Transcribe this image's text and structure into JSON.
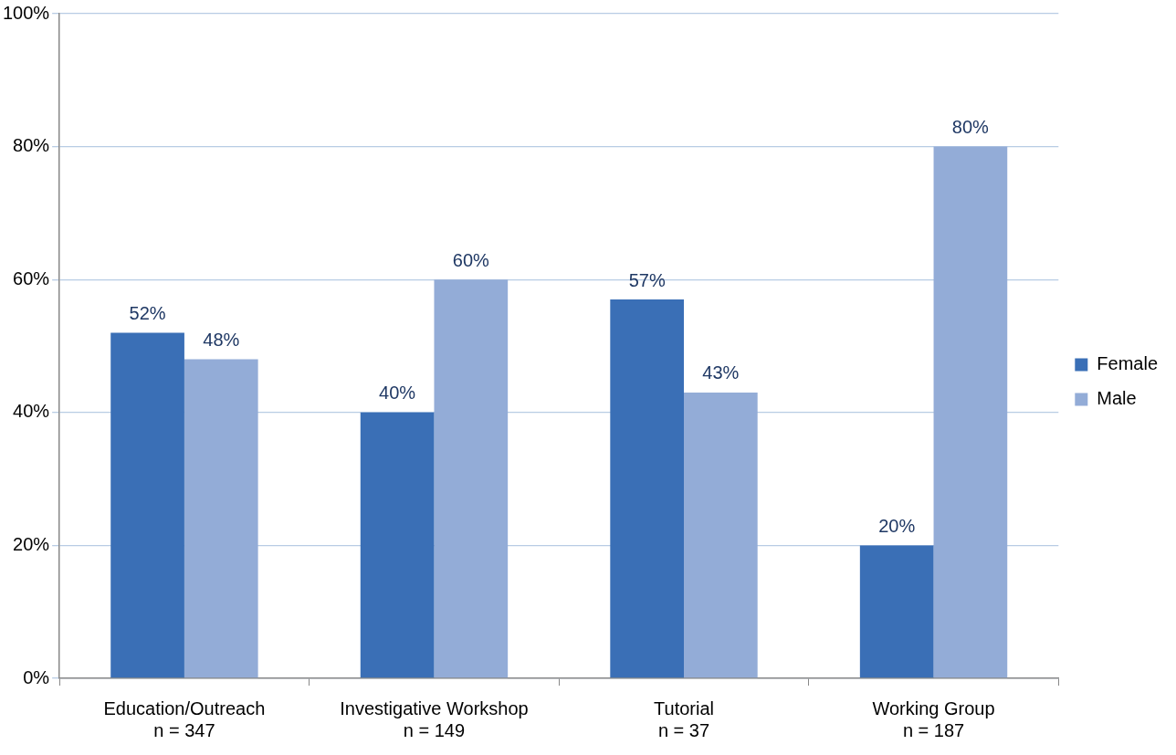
{
  "chart_data": {
    "type": "bar",
    "categories": [
      "Education/Outreach\nn = 347",
      "Investigative Workshop\nn = 149",
      "Tutorial\nn = 37",
      "Working Group\nn = 187"
    ],
    "series": [
      {
        "name": "Female",
        "color": "#3a6fb6",
        "values": [
          52,
          40,
          57,
          20
        ],
        "value_labels": [
          "52%",
          "40%",
          "57%",
          "20%"
        ]
      },
      {
        "name": "Male",
        "color": "#93acd7",
        "values": [
          48,
          60,
          43,
          80
        ],
        "value_labels": [
          "48%",
          "60%",
          "43%",
          "80%"
        ]
      }
    ],
    "ylim": [
      0,
      100
    ],
    "yticks": [
      {
        "value": 0,
        "label": "0%"
      },
      {
        "value": 20,
        "label": "20%"
      },
      {
        "value": 40,
        "label": "40%"
      },
      {
        "value": 60,
        "label": "60%"
      },
      {
        "value": 80,
        "label": "80%"
      },
      {
        "value": 100,
        "label": "100%"
      }
    ],
    "grid": "y",
    "legend": "right"
  }
}
